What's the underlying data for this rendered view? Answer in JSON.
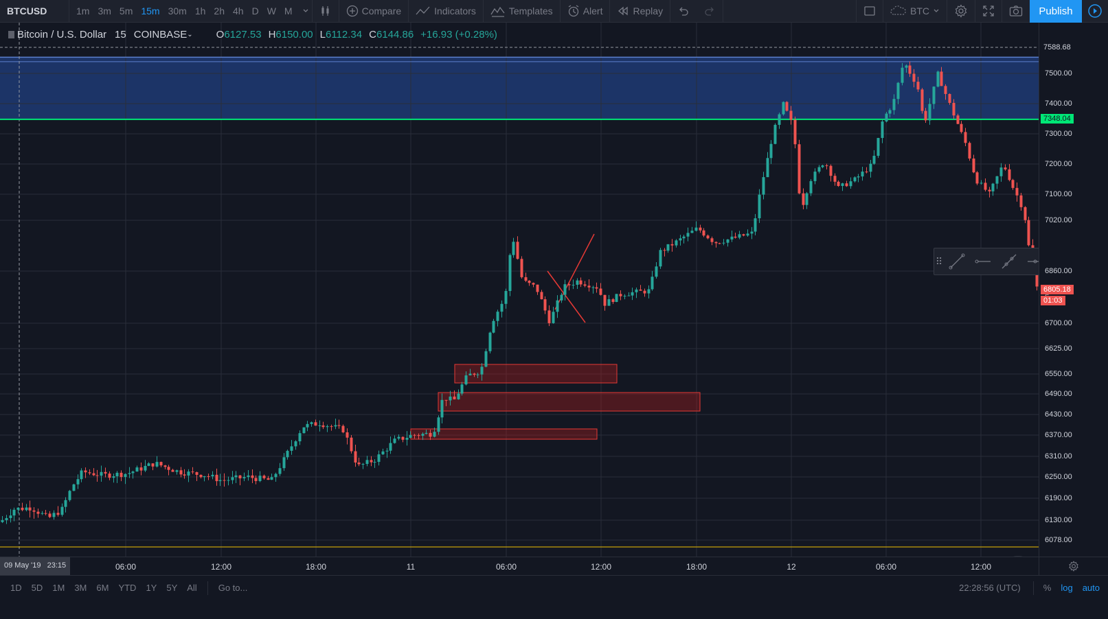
{
  "toolbar": {
    "symbol": "BTCUSD",
    "intervals": [
      "1m",
      "3m",
      "5m",
      "15m",
      "30m",
      "1h",
      "2h",
      "4h",
      "D",
      "W",
      "M"
    ],
    "active_interval": "15m",
    "compare_label": "Compare",
    "indicators_label": "Indicators",
    "templates_label": "Templates",
    "alert_label": "Alert",
    "replay_label": "Replay",
    "currency_label": "BTC",
    "publish_label": "Publish"
  },
  "legend": {
    "title": "Bitcoin / U.S. Dollar",
    "interval": "15",
    "exchange": "COINBASE",
    "o_label": "O",
    "o": "6127.53",
    "h_label": "H",
    "h": "6150.00",
    "l_label": "L",
    "l": "6112.34",
    "c_label": "C",
    "c": "6144.86",
    "change": "+16.93 (+0.28%)"
  },
  "price_axis": {
    "ticks": [
      "7500.00",
      "7400.00",
      "7300.00",
      "7200.00",
      "7100.00",
      "7020.00",
      "6860.00",
      "6700.00",
      "6625.00",
      "6550.00",
      "6490.00",
      "6430.00",
      "6370.00",
      "6310.00",
      "6250.00",
      "6190.00",
      "6130.00",
      "6078.00"
    ],
    "crosshair_price": "7588.68",
    "level_price": "7348.04",
    "last_price": "6805.18",
    "countdown": "01:03",
    "partial_tick": "6"
  },
  "time_axis": {
    "crosshair_label": "09 May '19   23:15",
    "ticks": [
      "06:00",
      "12:00",
      "18:00",
      "11",
      "06:00",
      "12:00",
      "18:00",
      "12",
      "06:00",
      "12:00"
    ]
  },
  "bottom": {
    "ranges": [
      "1D",
      "5D",
      "1M",
      "3M",
      "6M",
      "YTD",
      "1Y",
      "5Y",
      "All"
    ],
    "goto_label": "Go to...",
    "clock": "22:28:56 (UTC)",
    "pct_label": "%",
    "log_label": "log",
    "auto_label": "auto"
  },
  "colors": {
    "up": "#26a69a",
    "down": "#ef5350",
    "level": "#00e676",
    "zone": "#1f3a73",
    "accent": "#2196f3",
    "bottom_line": "#f0c000"
  },
  "chart_data": {
    "type": "candlestick",
    "timeframe": "15",
    "last_price": 6805.18,
    "horizontal_level": 7348.04,
    "shaded_zone": [
      7348.04,
      7555
    ],
    "bottom_line": 6078,
    "opens_first": 6127.53
  }
}
